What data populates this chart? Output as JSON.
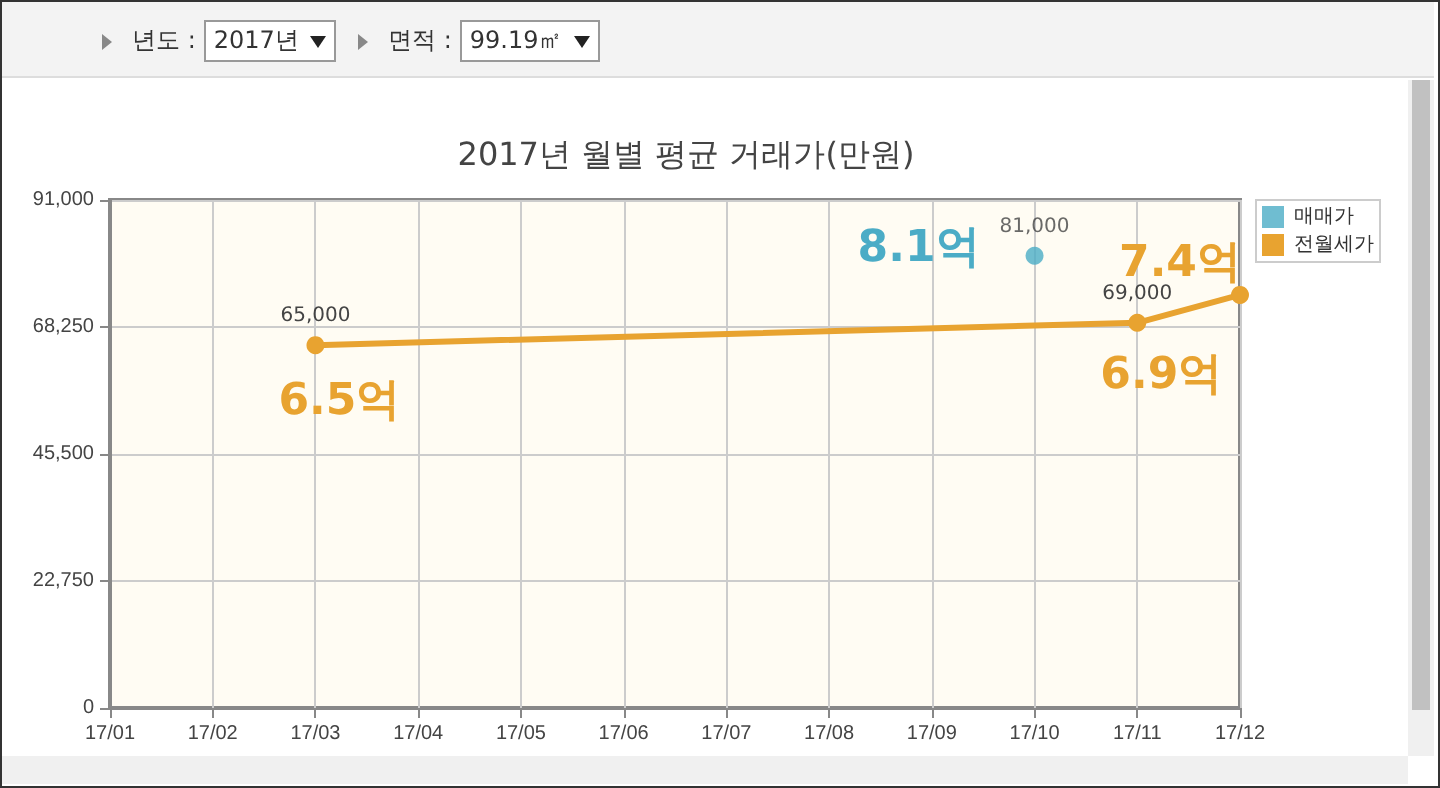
{
  "chart_data": {
    "type": "line",
    "title": "2017년 월별 평균 거래가(만원)",
    "categories": [
      "17/01",
      "17/02",
      "17/03",
      "17/04",
      "17/05",
      "17/06",
      "17/07",
      "17/08",
      "17/09",
      "17/10",
      "17/11",
      "17/12"
    ],
    "series": [
      {
        "name": "매매가",
        "color": "#4bacc6",
        "type": "scatter",
        "values": [
          null,
          null,
          null,
          null,
          null,
          null,
          null,
          null,
          null,
          81000,
          null,
          null
        ],
        "value_labels": [
          null,
          null,
          null,
          null,
          null,
          null,
          null,
          null,
          null,
          "81,000",
          null,
          null
        ]
      },
      {
        "name": "전월세가",
        "color": "#e8a330",
        "values": [
          null,
          null,
          65000,
          null,
          null,
          null,
          null,
          null,
          null,
          null,
          69000,
          74000
        ],
        "value_labels": [
          null,
          null,
          "65,000",
          null,
          null,
          null,
          null,
          null,
          null,
          null,
          "69,000",
          null
        ]
      }
    ],
    "ylim": [
      0,
      91000
    ],
    "yticks": [
      {
        "value": 0,
        "label": "0"
      },
      {
        "value": 22750,
        "label": "22,750"
      },
      {
        "value": 45500,
        "label": "45,500"
      },
      {
        "value": 68250,
        "label": "68,250"
      },
      {
        "value": 91000,
        "label": "91,000"
      }
    ],
    "grid": true,
    "legend": "right",
    "marker": "circle",
    "line_style": "solid",
    "annotations": [
      "년도 :",
      "2017년",
      "면적 :",
      "99.19㎡",
      {
        "text": "8.1억",
        "x": "17/10",
        "y": 81000
      },
      {
        "text": "6.5억",
        "x": "17/03",
        "y": 65000
      },
      {
        "text": "6.9억",
        "x": "17/11",
        "y": 69000
      },
      {
        "text": "7.4억",
        "x": "17/12",
        "y": 74000
      }
    ]
  }
}
